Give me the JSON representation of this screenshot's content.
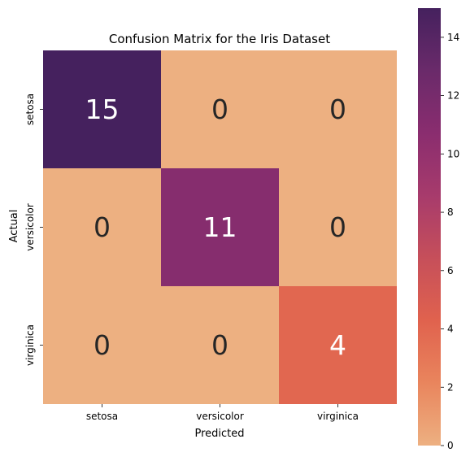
{
  "chart_data": {
    "type": "heatmap",
    "title": "Confusion Matrix for the Iris Dataset",
    "xlabel": "Predicted",
    "ylabel": "Actual",
    "x_categories": [
      "setosa",
      "versicolor",
      "virginica"
    ],
    "y_categories": [
      "setosa",
      "versicolor",
      "virginica"
    ],
    "values": [
      [
        15,
        0,
        0
      ],
      [
        0,
        11,
        0
      ],
      [
        0,
        0,
        4
      ]
    ],
    "colorbar": {
      "min": 0,
      "max": 15,
      "ticks": [
        "0",
        "2",
        "4",
        "6",
        "8",
        "10",
        "12",
        "14"
      ],
      "colormap": "flare",
      "colors": [
        "#edb081",
        "#e9855d",
        "#e0624e",
        "#c64f5a",
        "#a73b6c",
        "#8a2d6f",
        "#6a2a6a",
        "#45215e"
      ]
    },
    "annot_colors": {
      "dark": "#262626",
      "light": "#ffffff"
    }
  }
}
